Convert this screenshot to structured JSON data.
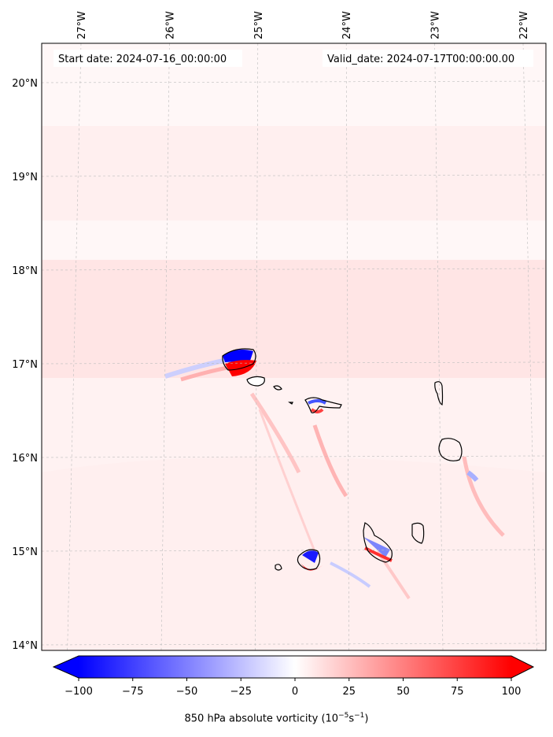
{
  "map": {
    "start_date_label": "Start date: 2024-07-16_00:00:00",
    "valid_date_label": "Valid_date: 2024-07-17T00:00:00.00",
    "lon_ticks": [
      "27°W",
      "26°W",
      "25°W",
      "24°W",
      "23°W",
      "22°W"
    ],
    "lat_ticks": [
      "20°N",
      "19°N",
      "18°N",
      "17°N",
      "16°N",
      "15°N",
      "14°N"
    ],
    "lon_values": [
      -27,
      -26,
      -25,
      -24,
      -23,
      -22
    ],
    "lat_values": [
      20,
      19,
      18,
      17,
      16,
      15,
      14
    ],
    "field": "850 hPa absolute vorticity"
  },
  "colorbar": {
    "ticks": [
      "−100",
      "−75",
      "−50",
      "−25",
      "0",
      "25",
      "50",
      "75",
      "100"
    ],
    "values": [
      -100,
      -75,
      -50,
      -25,
      0,
      25,
      50,
      75,
      100
    ],
    "min": -100,
    "max": 100,
    "label_main": "850 hPa absolute vorticity (10",
    "label_exp1": "−5",
    "label_mid": "s",
    "label_exp2": "−1",
    "label_end": ")",
    "color_negative": "#0000ff",
    "color_zero": "#ffffff",
    "color_positive": "#ff0000"
  },
  "islands": [
    "Santo Antão",
    "São Vicente",
    "Santa Luzia",
    "São Nicolau",
    "Sal",
    "Boa Vista",
    "Maio",
    "Santiago",
    "Fogo",
    "Brava"
  ]
}
